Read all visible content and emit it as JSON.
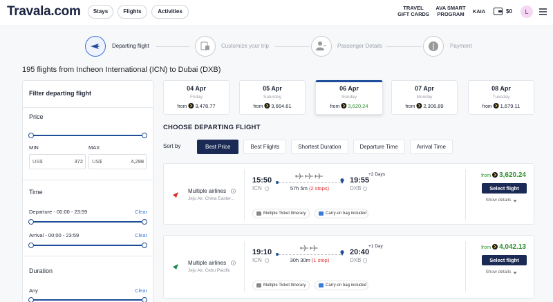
{
  "header": {
    "logo": "Travala.com",
    "nav": [
      "Stays",
      "Flights",
      "Activities"
    ],
    "gift_cards": [
      "TRAVEL",
      "GIFT CARDS"
    ],
    "ava": [
      "AVA SMART",
      "PROGRAM"
    ],
    "currency": "KAIA",
    "balance": "$0",
    "avatar": "L"
  },
  "steps": [
    "Departing flight",
    "Customize your trip",
    "Passenger Details",
    "Payment"
  ],
  "results_title": "195 flights from Incheon International (ICN) to Dubai (DXB)",
  "filter": {
    "title": "Filter departing flight",
    "price": {
      "label": "Price",
      "min_label": "MIN",
      "max_label": "MAX",
      "currency": "US$",
      "min": "372",
      "max": "4,298"
    },
    "time": {
      "label": "Time",
      "departure": {
        "label": "Departure - 00:00 - 23:59",
        "clear": "Clear"
      },
      "arrival": {
        "label": "Arrival - 00:00 - 23:59",
        "clear": "Clear"
      }
    },
    "duration": {
      "label": "Duration",
      "value": "Any",
      "clear": "Clear"
    }
  },
  "dates": [
    {
      "date": "04 Apr",
      "day": "Friday",
      "from": "from",
      "price": "3,478.77"
    },
    {
      "date": "05 Apr",
      "day": "Saturday",
      "from": "from",
      "price": "3,664.61"
    },
    {
      "date": "06 Apr",
      "day": "Sunday",
      "from": "from",
      "price": "3,620.24"
    },
    {
      "date": "07 Apr",
      "day": "Monday",
      "from": "from",
      "price": "2,306.89"
    },
    {
      "date": "08 Apr",
      "day": "Tuesday",
      "from": "from",
      "price": "1,679.11"
    }
  ],
  "selected_date": 2,
  "sort": {
    "heading": "CHOOSE DEPARTING FLIGHT",
    "label": "Sort by",
    "options": [
      "Best Price",
      "Best Flights",
      "Shortest Duration",
      "Departure Time",
      "Arrival Time"
    ],
    "active": 0
  },
  "flights": [
    {
      "airline": "Multiple airlines",
      "operators": "Jeju Air, China Easter...",
      "dep_time": "15:50",
      "dep_code": "ICN",
      "duration": "57h 5m",
      "stops": "(2 stops)",
      "arr_time": "19:55",
      "arr_code": "DXB",
      "day_offset": "+2 Days",
      "tags": [
        "Multiple Ticket Itinerary",
        "Carry-on bag included"
      ],
      "from": "from",
      "price": "3,620.24",
      "button": "Select flight",
      "details": "Show details"
    },
    {
      "airline": "Multiple airlines",
      "operators": "Jeju Air, Cebu Pacific",
      "dep_time": "19:10",
      "dep_code": "ICN",
      "duration": "30h 30m",
      "stops": "(1 stop)",
      "arr_time": "20:40",
      "arr_code": "DXB",
      "day_offset": "+1 Day",
      "tags": [
        "Multiple Ticket Itinerary",
        "Carry-on bag included"
      ],
      "from": "from",
      "price": "4,042.13",
      "button": "Select flight",
      "details": "Show details"
    }
  ]
}
